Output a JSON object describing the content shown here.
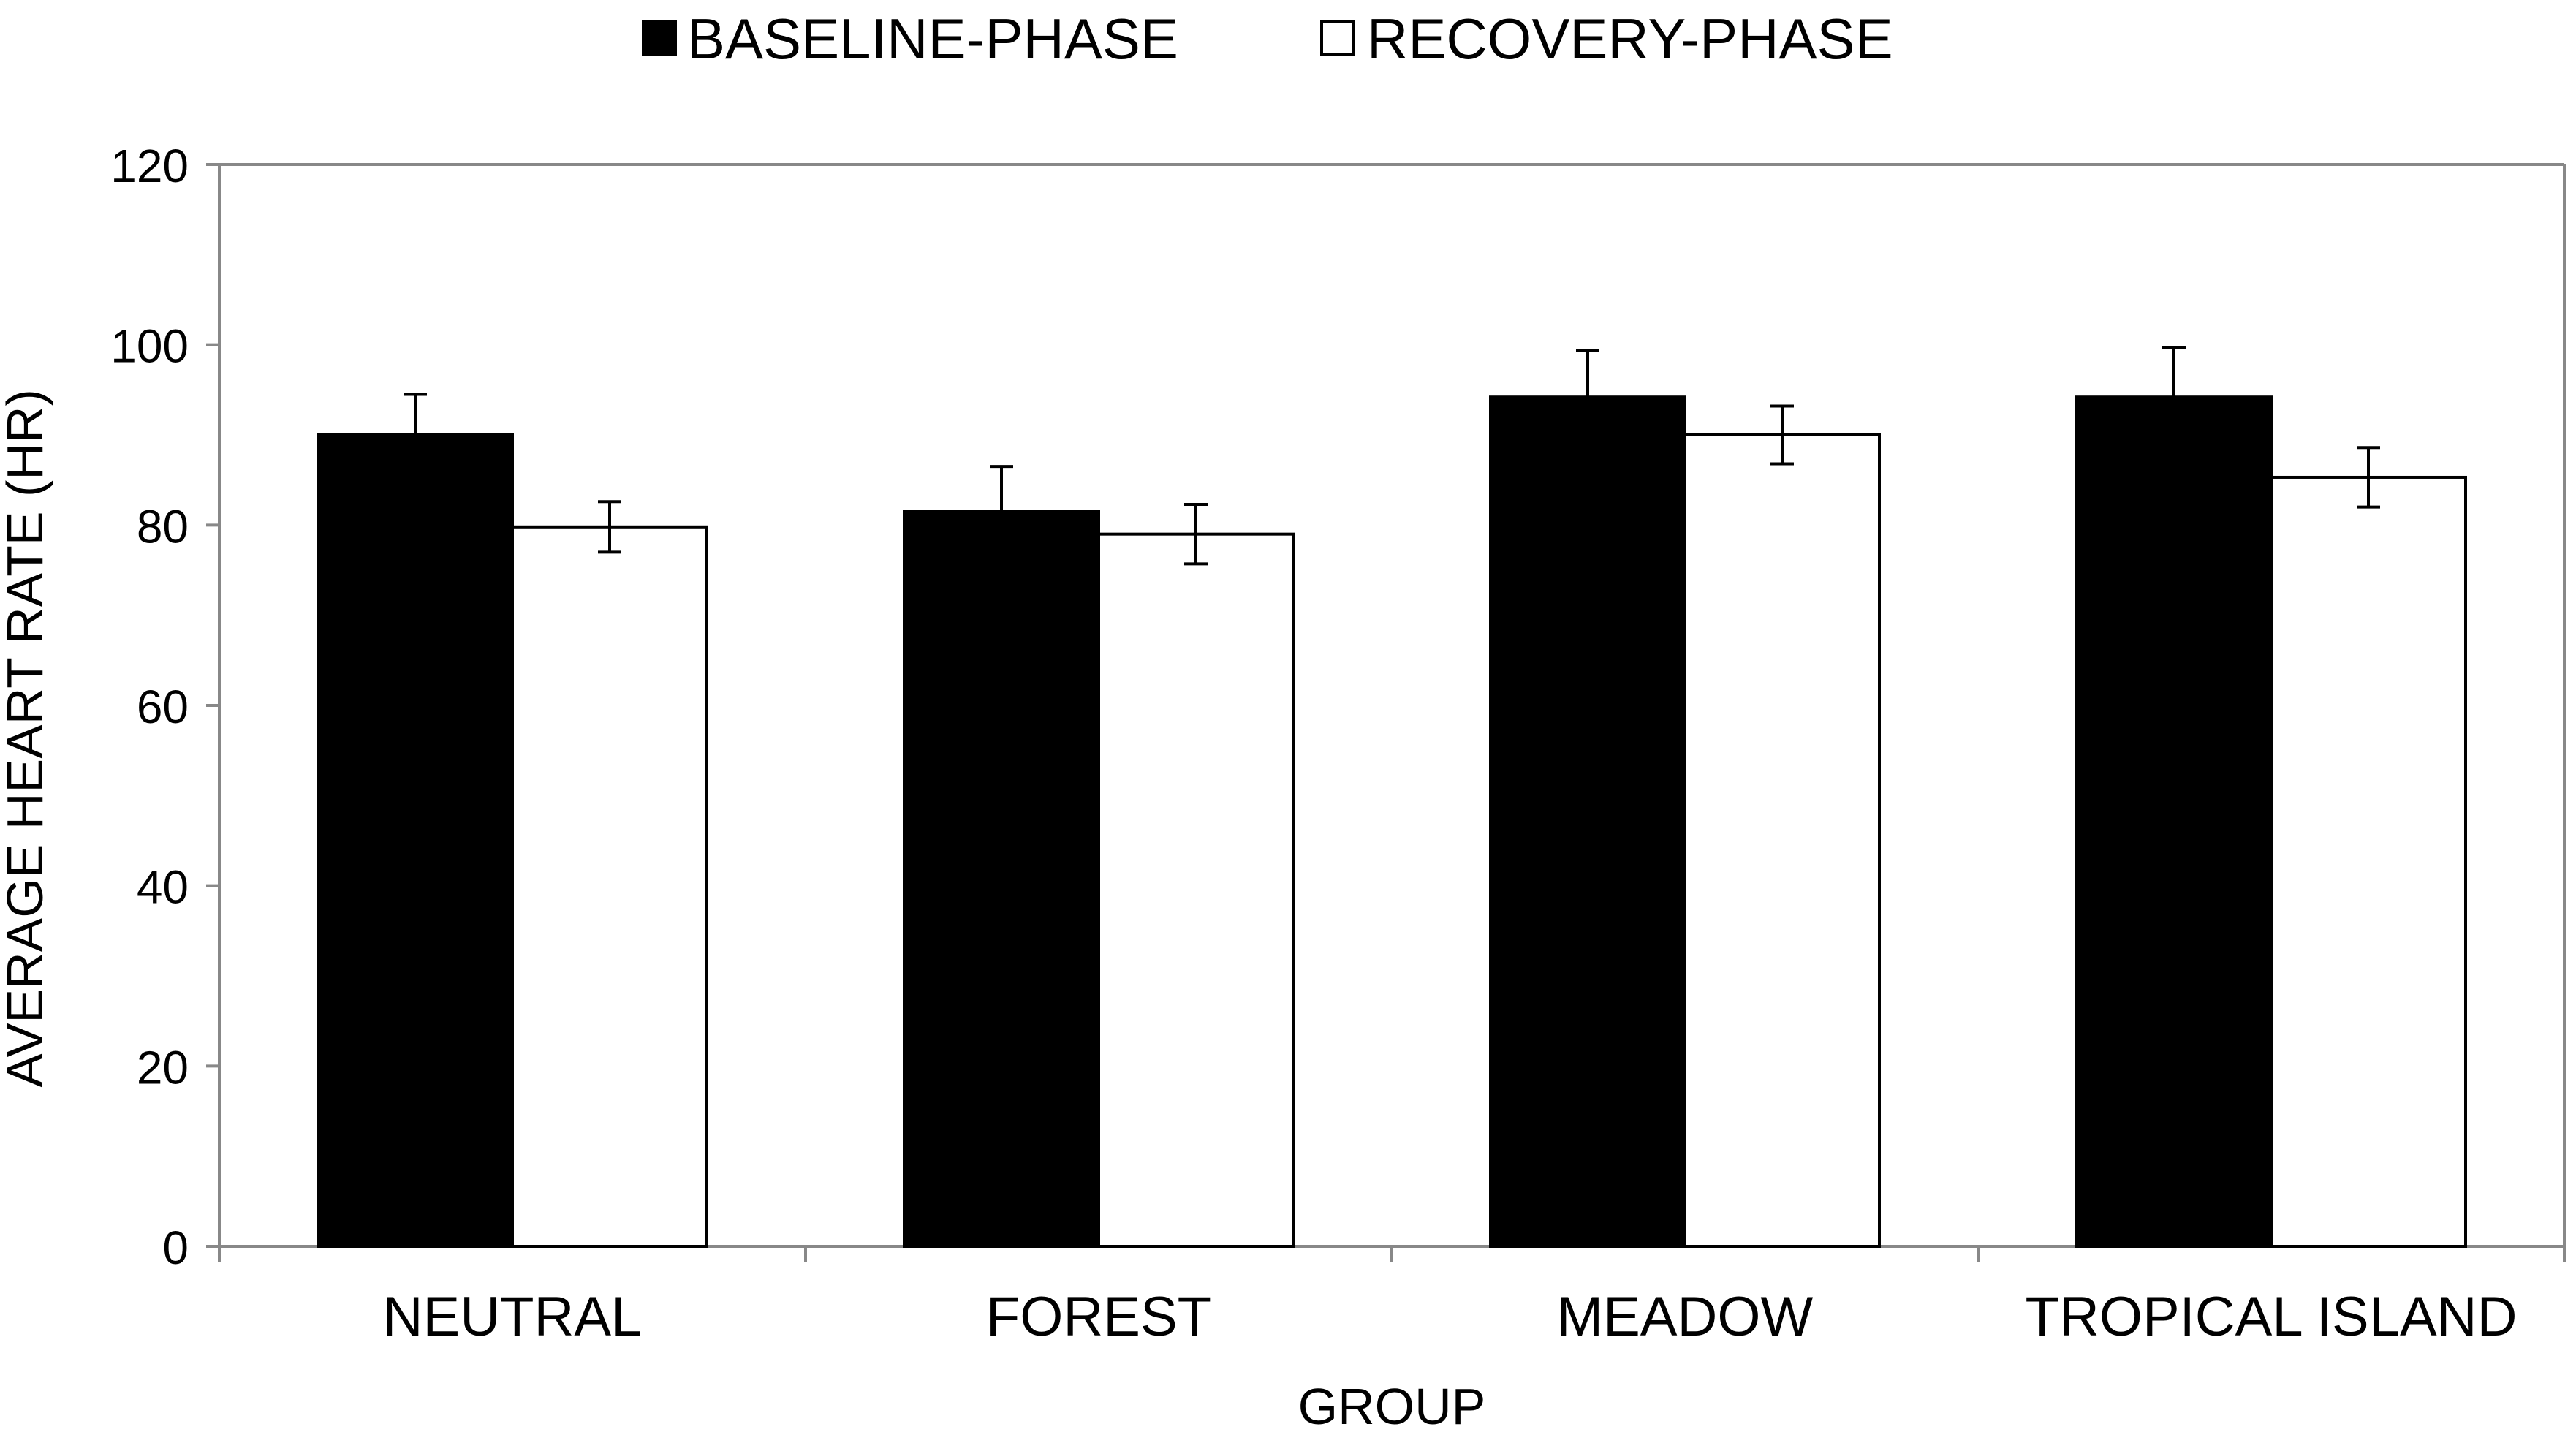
{
  "chart_data": {
    "type": "bar",
    "title": "",
    "xlabel": "GROUP",
    "ylabel": "AVERAGE HEART RATE (HR)",
    "categories": [
      "NEUTRAL",
      "FOREST",
      "MEADOW",
      "TROPICAL ISLAND"
    ],
    "series": [
      {
        "name": "BASELINE-PHASE",
        "color": "#000000",
        "values": [
          90,
          81.5,
          94.2,
          94.2
        ],
        "errors": [
          4.5,
          5,
          5.2,
          5.5
        ]
      },
      {
        "name": "RECOVERY-PHASE",
        "color": "#ffffff",
        "values": [
          79.8,
          79,
          90,
          85.3
        ],
        "errors": [
          2.8,
          3.3,
          3.2,
          3.3
        ]
      }
    ],
    "ylim": [
      0,
      120
    ],
    "yticks": [
      0,
      20,
      40,
      60,
      80,
      100,
      120
    ],
    "legend": "top-center",
    "grid": false
  }
}
